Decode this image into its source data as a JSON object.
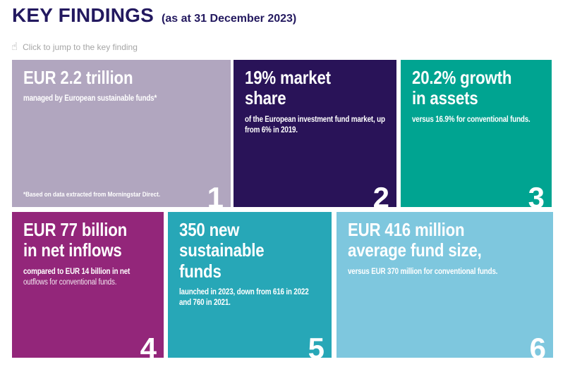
{
  "header": {
    "title": "KEY FINDINGS",
    "subtitle": "(as at 31 December 2023)"
  },
  "hint": {
    "icon": "pointer-click-icon",
    "label": "Click to jump to the key finding"
  },
  "colors": {
    "title_navy": "#23195f",
    "hint_gray": "#a6a6a6"
  },
  "tiles": [
    {
      "number": "1",
      "title": "EUR 2.2 trillion",
      "subtitle": "managed by European sustainable funds*",
      "footnote": "*Based on data extracted from Morningstar Direct.",
      "color": "#b1a6bf"
    },
    {
      "number": "2",
      "title": "19% market\nshare",
      "subtitle": "of the European investment fund market, up from 6% in 2019.",
      "color": "#291358"
    },
    {
      "number": "3",
      "title": "20.2% growth\nin assets",
      "subtitle": "versus 16.9% for conventional funds.",
      "color": "#00a491"
    },
    {
      "number": "4",
      "title": "EUR 77 billion\nin net inflows",
      "subtitle": "compared to EUR 14 billion in net",
      "subtitle_light": "outflows for conventional funds.",
      "color": "#93267a"
    },
    {
      "number": "5",
      "title": "350 new\nsustainable\nfunds",
      "subtitle": "launched in 2023, down from 616 in 2022 and 760 in 2021.",
      "color": "#27a7b7"
    },
    {
      "number": "6",
      "title": "EUR 416 million\naverage fund size,",
      "subtitle": "versus EUR 370 million for conventional funds.",
      "color": "#7ec7de"
    }
  ]
}
